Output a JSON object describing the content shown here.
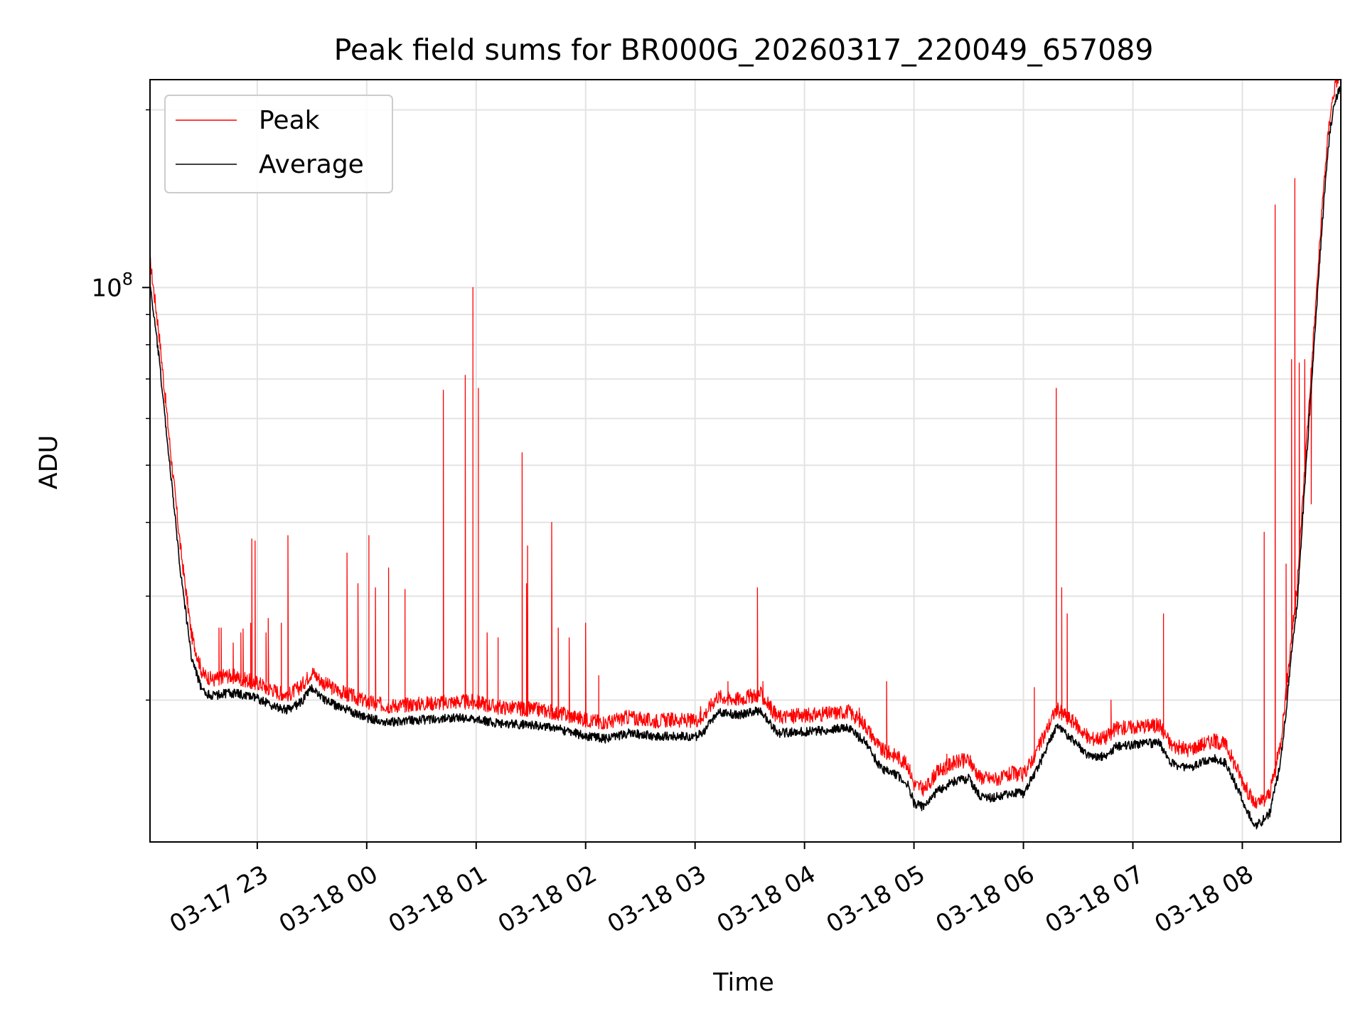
{
  "chart_data": {
    "type": "line",
    "title": "Peak field sums for BR000G_20260317_220049_657089",
    "xlabel": "Time",
    "ylabel": "ADU",
    "yscale": "log",
    "ylim": [
      11500000,
      225000000
    ],
    "xlim_hours": [
      -0.98,
      9.9
    ],
    "grid": true,
    "legend_loc": "upper-left",
    "y_major_tick": {
      "value": 100000000,
      "label": "10",
      "exponent": "8"
    },
    "y_minor_ticks": [
      20000000,
      30000000,
      40000000,
      50000000,
      60000000,
      70000000,
      80000000,
      90000000,
      200000000
    ],
    "x_ticks": [
      {
        "hour": 0,
        "label": "03-17 23"
      },
      {
        "hour": 1,
        "label": "03-18 00"
      },
      {
        "hour": 2,
        "label": "03-18 01"
      },
      {
        "hour": 3,
        "label": "03-18 02"
      },
      {
        "hour": 4,
        "label": "03-18 03"
      },
      {
        "hour": 5,
        "label": "03-18 04"
      },
      {
        "hour": 6,
        "label": "03-18 05"
      },
      {
        "hour": 7,
        "label": "03-18 06"
      },
      {
        "hour": 8,
        "label": "03-18 07"
      },
      {
        "hour": 9,
        "label": "03-18 08"
      }
    ],
    "series": [
      {
        "name": "Peak",
        "color": "#ff0000",
        "baseline_points": [
          [
            -0.98,
            108000000
          ],
          [
            -0.9,
            82000000
          ],
          [
            -0.8,
            53000000
          ],
          [
            -0.7,
            35000000
          ],
          [
            -0.6,
            25000000
          ],
          [
            -0.5,
            21500000
          ],
          [
            -0.4,
            21000000
          ],
          [
            -0.3,
            21400000
          ],
          [
            -0.2,
            21300000
          ],
          [
            -0.1,
            21000000
          ],
          [
            0.0,
            20800000
          ],
          [
            0.1,
            20400000
          ],
          [
            0.2,
            20000000
          ],
          [
            0.3,
            19900000
          ],
          [
            0.4,
            20500000
          ],
          [
            0.5,
            21700000
          ],
          [
            0.6,
            20800000
          ],
          [
            0.7,
            20300000
          ],
          [
            0.85,
            19800000
          ],
          [
            1.0,
            19300000
          ],
          [
            1.2,
            19000000
          ],
          [
            1.4,
            19100000
          ],
          [
            1.6,
            19200000
          ],
          [
            1.8,
            19300000
          ],
          [
            2.0,
            19300000
          ],
          [
            2.2,
            18900000
          ],
          [
            2.4,
            18800000
          ],
          [
            2.6,
            18700000
          ],
          [
            2.8,
            18400000
          ],
          [
            3.0,
            18000000
          ],
          [
            3.2,
            17800000
          ],
          [
            3.4,
            18200000
          ],
          [
            3.6,
            17900000
          ],
          [
            3.8,
            18000000
          ],
          [
            4.0,
            17900000
          ],
          [
            4.1,
            18500000
          ],
          [
            4.2,
            19700000
          ],
          [
            4.4,
            19500000
          ],
          [
            4.6,
            19900000
          ],
          [
            4.75,
            18200000
          ],
          [
            5.0,
            18300000
          ],
          [
            5.2,
            18400000
          ],
          [
            5.4,
            18600000
          ],
          [
            5.55,
            17700000
          ],
          [
            5.7,
            16000000
          ],
          [
            5.85,
            15600000
          ],
          [
            5.95,
            15000000
          ],
          [
            6.0,
            14000000
          ],
          [
            6.1,
            13700000
          ],
          [
            6.2,
            14600000
          ],
          [
            6.35,
            15200000
          ],
          [
            6.5,
            15400000
          ],
          [
            6.6,
            14400000
          ],
          [
            6.7,
            14300000
          ],
          [
            6.8,
            14300000
          ],
          [
            6.9,
            14600000
          ],
          [
            7.0,
            14500000
          ],
          [
            7.15,
            16300000
          ],
          [
            7.3,
            18800000
          ],
          [
            7.45,
            17900000
          ],
          [
            7.6,
            16700000
          ],
          [
            7.75,
            16800000
          ],
          [
            7.85,
            17400000
          ],
          [
            8.0,
            17500000
          ],
          [
            8.15,
            17600000
          ],
          [
            8.25,
            17600000
          ],
          [
            8.35,
            16300000
          ],
          [
            8.5,
            16000000
          ],
          [
            8.65,
            16400000
          ],
          [
            8.75,
            16600000
          ],
          [
            8.85,
            16300000
          ],
          [
            8.95,
            14900000
          ],
          [
            9.05,
            13600000
          ],
          [
            9.12,
            12900000
          ],
          [
            9.18,
            13100000
          ],
          [
            9.25,
            13500000
          ],
          [
            9.3,
            14800000
          ],
          [
            9.35,
            16500000
          ],
          [
            9.4,
            20000000
          ],
          [
            9.45,
            25000000
          ],
          [
            9.5,
            30000000
          ],
          [
            9.55,
            42000000
          ],
          [
            9.6,
            58000000
          ],
          [
            9.65,
            80000000
          ],
          [
            9.7,
            110000000
          ],
          [
            9.75,
            150000000
          ],
          [
            9.8,
            190000000
          ],
          [
            9.85,
            215000000
          ],
          [
            9.9,
            225000000
          ]
        ],
        "spikes": [
          [
            -0.35,
            26500000
          ],
          [
            -0.22,
            25000000
          ],
          [
            -0.06,
            27000000
          ],
          [
            0.1,
            27500000
          ],
          [
            -0.33,
            26500000
          ],
          [
            -0.15,
            26000000
          ],
          [
            -0.13,
            26400000
          ],
          [
            0.08,
            26000000
          ],
          [
            0.22,
            27000000
          ],
          [
            -0.05,
            37500000
          ],
          [
            -0.02,
            37200000
          ],
          [
            0.28,
            38000000
          ],
          [
            0.82,
            35500000
          ],
          [
            0.92,
            31500000
          ],
          [
            1.02,
            38000000
          ],
          [
            1.2,
            33500000
          ],
          [
            1.08,
            31000000
          ],
          [
            1.35,
            30800000
          ],
          [
            1.7,
            67000000
          ],
          [
            1.9,
            71000000
          ],
          [
            1.97,
            100000000
          ],
          [
            2.02,
            67500000
          ],
          [
            2.1,
            26000000
          ],
          [
            2.2,
            25500000
          ],
          [
            2.42,
            52500000
          ],
          [
            2.47,
            36500000
          ],
          [
            2.46,
            31500000
          ],
          [
            2.69,
            40000000
          ],
          [
            2.75,
            26500000
          ],
          [
            2.85,
            25500000
          ],
          [
            3.0,
            27000000
          ],
          [
            3.12,
            22000000
          ],
          [
            3.45,
            18900000
          ],
          [
            4.05,
            19500000
          ],
          [
            4.3,
            21500000
          ],
          [
            4.57,
            31000000
          ],
          [
            4.62,
            21500000
          ],
          [
            4.9,
            19300000
          ],
          [
            5.5,
            19400000
          ],
          [
            5.75,
            21500000
          ],
          [
            6.3,
            16200000
          ],
          [
            6.45,
            16000000
          ],
          [
            7.1,
            21000000
          ],
          [
            7.3,
            67500000
          ],
          [
            7.35,
            31000000
          ],
          [
            7.4,
            28000000
          ],
          [
            7.8,
            20000000
          ],
          [
            8.28,
            28000000
          ],
          [
            8.2,
            18500000
          ],
          [
            8.75,
            17500000
          ],
          [
            9.2,
            38500000
          ],
          [
            9.3,
            138000000
          ],
          [
            9.4,
            34000000
          ],
          [
            9.45,
            75500000
          ],
          [
            9.48,
            153000000
          ],
          [
            9.52,
            74500000
          ],
          [
            9.57,
            75500000
          ],
          [
            9.63,
            43000000
          ]
        ]
      },
      {
        "name": "Average",
        "color": "#000000",
        "baseline_points": [
          [
            -0.98,
            103000000
          ],
          [
            -0.9,
            78000000
          ],
          [
            -0.8,
            51000000
          ],
          [
            -0.7,
            33500000
          ],
          [
            -0.6,
            24000000
          ],
          [
            -0.5,
            21000000
          ],
          [
            -0.4,
            20700000
          ],
          [
            -0.3,
            20900000
          ],
          [
            -0.2,
            20900000
          ],
          [
            -0.1,
            20700000
          ],
          [
            0.0,
            20500000
          ],
          [
            0.1,
            20100000
          ],
          [
            0.2,
            19700000
          ],
          [
            0.3,
            19600000
          ],
          [
            0.4,
            20200000
          ],
          [
            0.5,
            21400000
          ],
          [
            0.6,
            20500000
          ],
          [
            0.7,
            20000000
          ],
          [
            0.85,
            19500000
          ],
          [
            1.0,
            19000000
          ],
          [
            1.2,
            18700000
          ],
          [
            1.4,
            18800000
          ],
          [
            1.6,
            18900000
          ],
          [
            1.8,
            19000000
          ],
          [
            2.0,
            18900000
          ],
          [
            2.2,
            18600000
          ],
          [
            2.4,
            18500000
          ],
          [
            2.6,
            18400000
          ],
          [
            2.8,
            18100000
          ],
          [
            3.0,
            17700000
          ],
          [
            3.2,
            17500000
          ],
          [
            3.4,
            17900000
          ],
          [
            3.6,
            17700000
          ],
          [
            3.8,
            17700000
          ],
          [
            4.0,
            17600000
          ],
          [
            4.1,
            18200000
          ],
          [
            4.2,
            19400000
          ],
          [
            4.4,
            19200000
          ],
          [
            4.6,
            19600000
          ],
          [
            4.75,
            17900000
          ],
          [
            5.0,
            18000000
          ],
          [
            5.2,
            18100000
          ],
          [
            5.4,
            18300000
          ],
          [
            5.55,
            17300000
          ],
          [
            5.7,
            15600000
          ],
          [
            5.85,
            15200000
          ],
          [
            5.95,
            14600000
          ],
          [
            6.0,
            13600000
          ],
          [
            6.1,
            13400000
          ],
          [
            6.2,
            14200000
          ],
          [
            6.35,
            14800000
          ],
          [
            6.5,
            15000000
          ],
          [
            6.6,
            14000000
          ],
          [
            6.7,
            13900000
          ],
          [
            6.8,
            14000000
          ],
          [
            6.9,
            14200000
          ],
          [
            7.0,
            14100000
          ],
          [
            7.15,
            15900000
          ],
          [
            7.3,
            18400000
          ],
          [
            7.45,
            17500000
          ],
          [
            7.6,
            16300000
          ],
          [
            7.75,
            16400000
          ],
          [
            7.85,
            17000000
          ],
          [
            8.0,
            17100000
          ],
          [
            8.15,
            17200000
          ],
          [
            8.25,
            17200000
          ],
          [
            8.35,
            15900000
          ],
          [
            8.5,
            15600000
          ],
          [
            8.65,
            16000000
          ],
          [
            8.75,
            16200000
          ],
          [
            8.85,
            15900000
          ],
          [
            8.95,
            14500000
          ],
          [
            9.05,
            13200000
          ],
          [
            9.12,
            12500000
          ],
          [
            9.18,
            12700000
          ],
          [
            9.25,
            13100000
          ],
          [
            9.3,
            14400000
          ],
          [
            9.35,
            16100000
          ],
          [
            9.4,
            19500000
          ],
          [
            9.45,
            24500000
          ],
          [
            9.5,
            29500000
          ],
          [
            9.55,
            41000000
          ],
          [
            9.6,
            57000000
          ],
          [
            9.65,
            78000000
          ],
          [
            9.7,
            108000000
          ],
          [
            9.75,
            147000000
          ],
          [
            9.8,
            187000000
          ],
          [
            9.85,
            212000000
          ],
          [
            9.9,
            224000000
          ]
        ]
      }
    ]
  }
}
